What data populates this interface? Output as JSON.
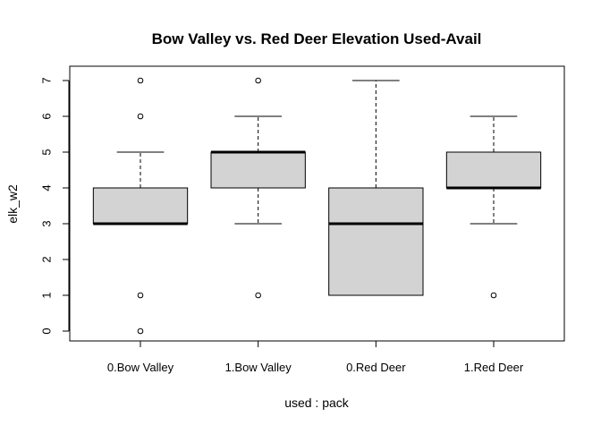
{
  "chart_data": {
    "type": "boxplot",
    "title": "Bow Valley vs. Red Deer Elevation Used-Avail",
    "xlabel": "used : pack",
    "ylabel": "elk_w2",
    "ylim": [
      -0.25,
      7.25
    ],
    "yticks": [
      "0",
      "1",
      "2",
      "3",
      "4",
      "5",
      "6",
      "7"
    ],
    "box_fill": "#d3d3d3",
    "categories": [
      "0.Bow Valley",
      "1.Bow Valley",
      "0.Red Deer",
      "1.Red Deer"
    ],
    "boxes": [
      {
        "category": "0.Bow Valley",
        "whisker_low": 3,
        "q1": 3,
        "median": 3,
        "q3": 4,
        "whisker_high": 5,
        "outliers": [
          7,
          6,
          1,
          0
        ]
      },
      {
        "category": "1.Bow Valley",
        "whisker_low": 3,
        "q1": 4,
        "median": 5,
        "q3": 5,
        "whisker_high": 6,
        "outliers": [
          7,
          1
        ]
      },
      {
        "category": "0.Red Deer",
        "whisker_low": 1,
        "q1": 1,
        "median": 3,
        "q3": 4,
        "whisker_high": 7,
        "outliers": []
      },
      {
        "category": "1.Red Deer",
        "whisker_low": 3,
        "q1": 4,
        "median": 4,
        "q3": 5,
        "whisker_high": 6,
        "outliers": [
          1
        ]
      }
    ]
  }
}
